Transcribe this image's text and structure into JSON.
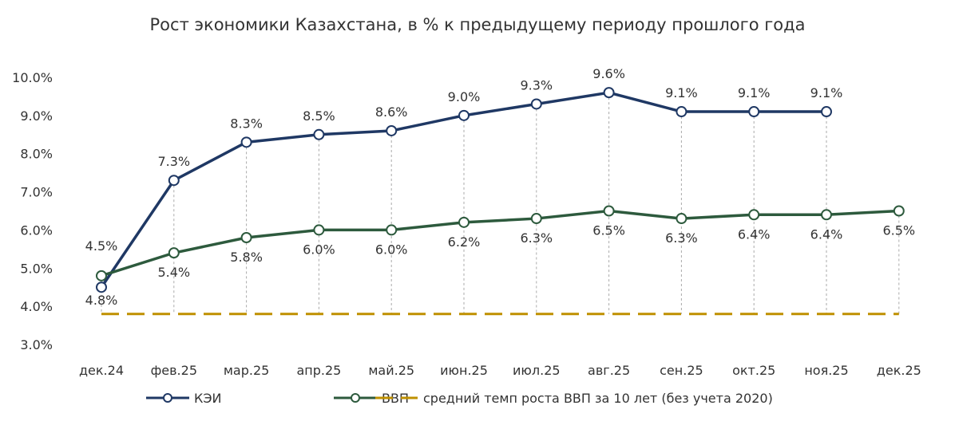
{
  "chart_data": {
    "type": "line",
    "title": "Рост экономики Казахстана, в % к предыдущему периоду прошлого года",
    "categories": [
      "дек.24",
      "фев.25",
      "мар.25",
      "апр.25",
      "май.25",
      "июн.25",
      "июл.25",
      "авг.25",
      "сен.25",
      "окт.25",
      "ноя.25",
      "дек.25"
    ],
    "ylim": [
      3.0,
      10.0
    ],
    "yticks": [
      "3.0%",
      "4.0%",
      "5.0%",
      "6.0%",
      "7.0%",
      "8.0%",
      "9.0%",
      "10.0%"
    ],
    "grid": false,
    "legend_position": "bottom",
    "series": [
      {
        "name": "КЭИ",
        "color": "#1F3864",
        "values": [
          4.5,
          7.3,
          8.3,
          8.5,
          8.6,
          9.0,
          9.3,
          9.6,
          9.1,
          9.1,
          9.1,
          null
        ],
        "labels": [
          "4.5%",
          "7.3%",
          "8.3%",
          "8.5%",
          "8.6%",
          "9.0%",
          "9.3%",
          "9.6%",
          "9.1%",
          "9.1%",
          "9.1%",
          ""
        ]
      },
      {
        "name": "ВВП",
        "color": "#2D5A3D",
        "values": [
          4.8,
          5.4,
          5.8,
          6.0,
          6.0,
          6.2,
          6.3,
          6.5,
          6.3,
          6.4,
          6.4,
          6.5
        ],
        "labels": [
          "4.8%",
          "5.4%",
          "5.8%",
          "6.0%",
          "6.0%",
          "6.2%",
          "6.3%",
          "6.5%",
          "6.3%",
          "6.4%",
          "6.4%",
          "6.5%"
        ]
      }
    ],
    "reference_line": {
      "name": "средний темп роста ВВП за 10 лет (без учета 2020)",
      "value": 3.8,
      "color": "#BF9000",
      "style": "dashed"
    }
  }
}
